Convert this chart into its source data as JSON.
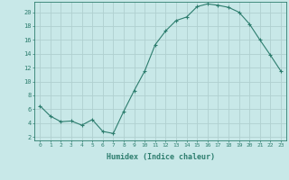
{
  "x": [
    0,
    1,
    2,
    3,
    4,
    5,
    6,
    7,
    8,
    9,
    10,
    11,
    12,
    13,
    14,
    15,
    16,
    17,
    18,
    19,
    20,
    21,
    22,
    23
  ],
  "y": [
    6.5,
    5.0,
    4.2,
    4.3,
    3.7,
    4.5,
    2.8,
    2.5,
    5.7,
    8.7,
    11.5,
    15.3,
    17.3,
    18.8,
    19.3,
    20.8,
    21.2,
    21.0,
    20.7,
    20.0,
    18.3,
    16.0,
    13.8,
    11.5
  ],
  "line_color": "#2d7d6e",
  "marker": "+",
  "marker_color": "#2d7d6e",
  "bg_color": "#c8e8e8",
  "grid_color": "#b0d0d0",
  "tick_color": "#2d7d6e",
  "xlabel": "Humidex (Indice chaleur)",
  "xlim": [
    -0.5,
    23.5
  ],
  "ylim": [
    1.5,
    21.5
  ],
  "yticks": [
    2,
    4,
    6,
    8,
    10,
    12,
    14,
    16,
    18,
    20
  ],
  "xticks": [
    0,
    1,
    2,
    3,
    4,
    5,
    6,
    7,
    8,
    9,
    10,
    11,
    12,
    13,
    14,
    15,
    16,
    17,
    18,
    19,
    20,
    21,
    22,
    23
  ],
  "xtick_labels": [
    "0",
    "1",
    "2",
    "3",
    "4",
    "5",
    "6",
    "7",
    "8",
    "9",
    "10",
    "11",
    "12",
    "13",
    "14",
    "15",
    "16",
    "17",
    "18",
    "19",
    "20",
    "21",
    "22",
    "23"
  ]
}
